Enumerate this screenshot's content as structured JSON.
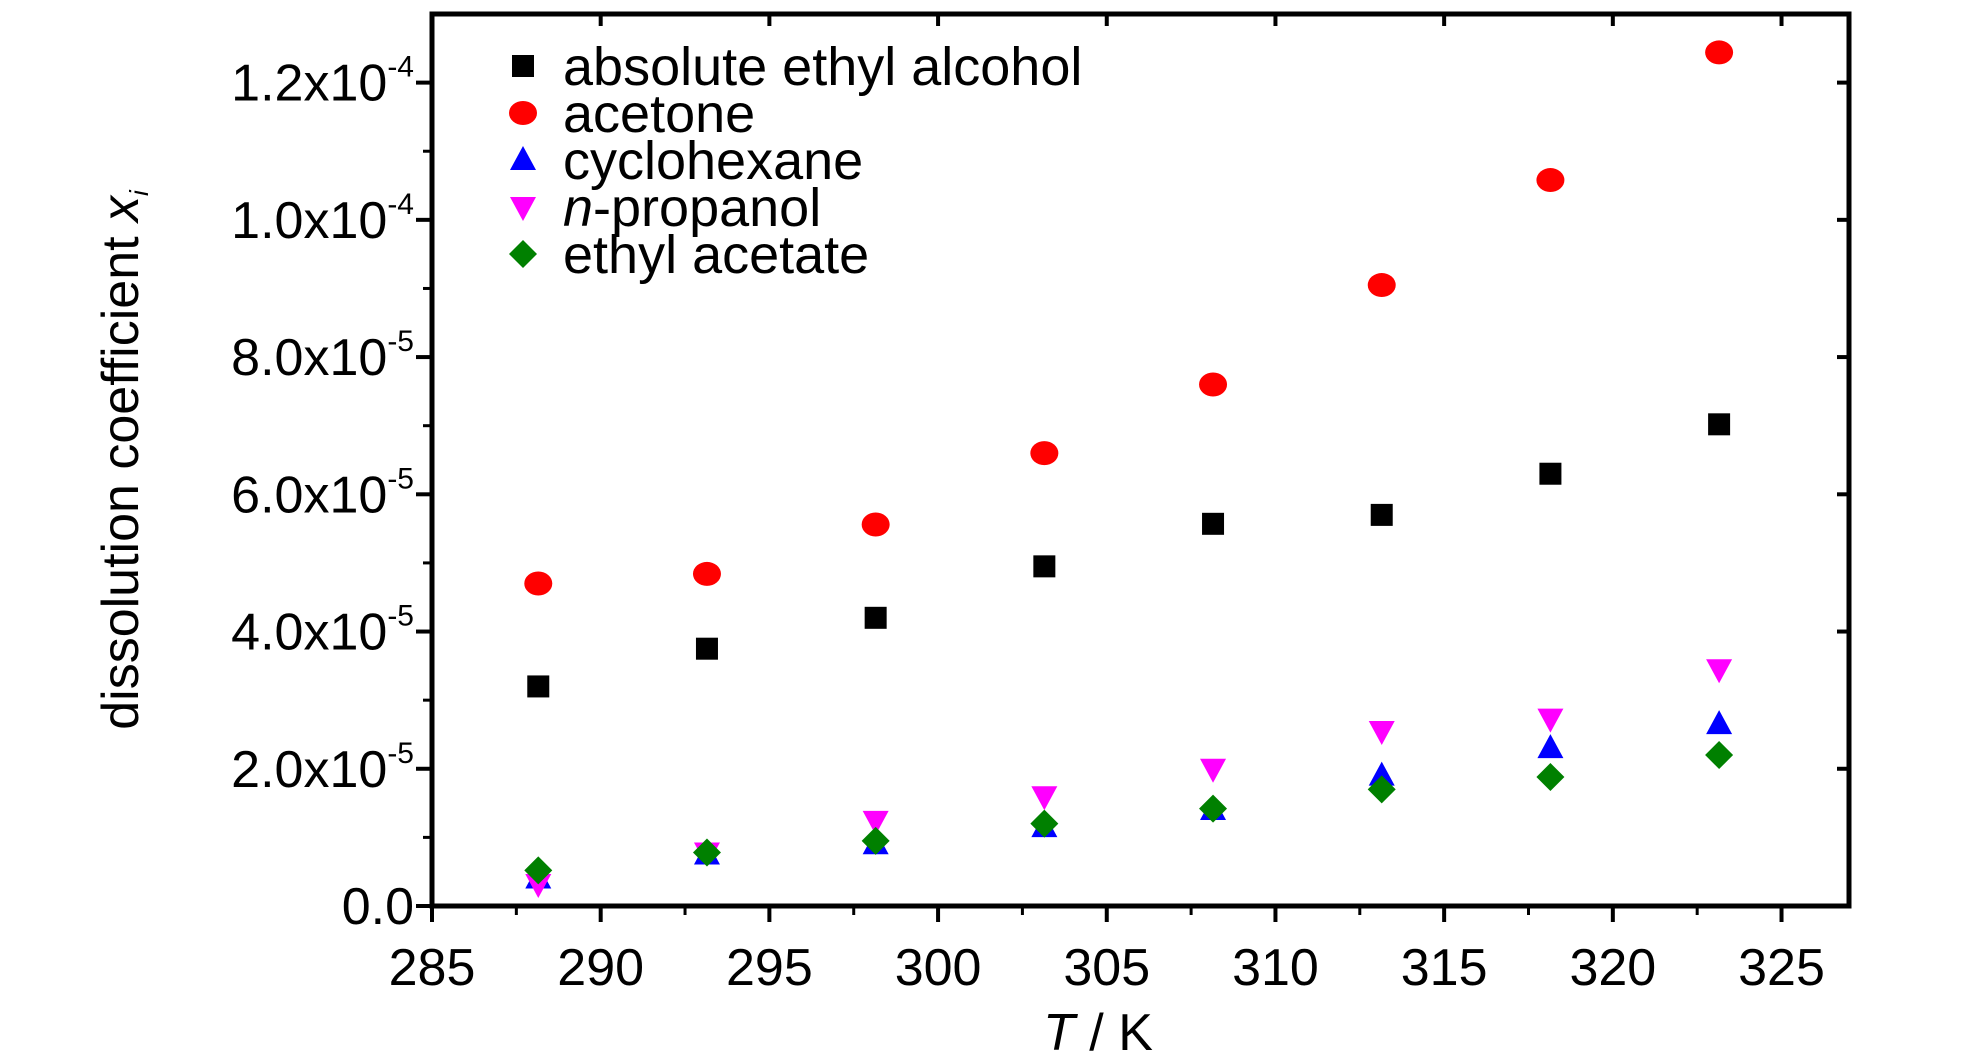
{
  "chart_data": {
    "type": "scatter",
    "xlabel": {
      "italic": "T",
      "rest": " / K"
    },
    "ylabel": {
      "text": "dissolution coefficient ",
      "var": "x",
      "sub": "i"
    },
    "xlim": [
      285,
      327
    ],
    "ylim": [
      0,
      0.00013
    ],
    "xticks": [
      285,
      290,
      295,
      300,
      305,
      310,
      315,
      320,
      325
    ],
    "yticks": [
      {
        "value": 0,
        "base": "0.0",
        "exp": ""
      },
      {
        "value": 2e-05,
        "base": "2.0x10",
        "exp": "-5"
      },
      {
        "value": 4e-05,
        "base": "4.0x10",
        "exp": "-5"
      },
      {
        "value": 6e-05,
        "base": "6.0x10",
        "exp": "-5"
      },
      {
        "value": 8e-05,
        "base": "8.0x10",
        "exp": "-5"
      },
      {
        "value": 0.0001,
        "base": "1.0x10",
        "exp": "-4"
      },
      {
        "value": 0.00012,
        "base": "1.2x10",
        "exp": "-4"
      }
    ],
    "x": [
      288.15,
      293.15,
      298.15,
      303.15,
      308.15,
      313.15,
      318.15,
      323.15
    ],
    "legend_position": "top-left",
    "series": [
      {
        "name": "absolute ethyl alcohol",
        "marker": "square",
        "color": "#000000",
        "values": [
          3.2e-05,
          3.75e-05,
          4.2e-05,
          4.95e-05,
          5.57e-05,
          5.7e-05,
          6.3e-05,
          7.02e-05
        ]
      },
      {
        "name": "acetone",
        "marker": "circle",
        "color": "#ff0000",
        "values": [
          4.7e-05,
          4.84e-05,
          5.56e-05,
          6.6e-05,
          7.6e-05,
          9.05e-05,
          0.0001058,
          0.0001244
        ]
      },
      {
        "name": "cyclohexane",
        "marker": "triangle-up",
        "color": "#0000ff",
        "values": [
          4e-06,
          7.5e-06,
          9e-06,
          1.15e-05,
          1.4e-05,
          1.9e-05,
          2.3e-05,
          2.65e-05
        ]
      },
      {
        "name": "n-propanol",
        "name_parts": {
          "italic": "n",
          "rest": "-propanol"
        },
        "marker": "triangle-down",
        "color": "#ff00ff",
        "values": [
          3.2e-06,
          7.8e-06,
          1.24e-05,
          1.6e-05,
          2e-05,
          2.55e-05,
          2.73e-05,
          3.45e-05
        ]
      },
      {
        "name": "ethyl acetate",
        "marker": "diamond",
        "color": "#008000",
        "values": [
          5.2e-06,
          7.8e-06,
          9.5e-06,
          1.2e-05,
          1.42e-05,
          1.7e-05,
          1.88e-05,
          2.2e-05
        ]
      }
    ]
  }
}
